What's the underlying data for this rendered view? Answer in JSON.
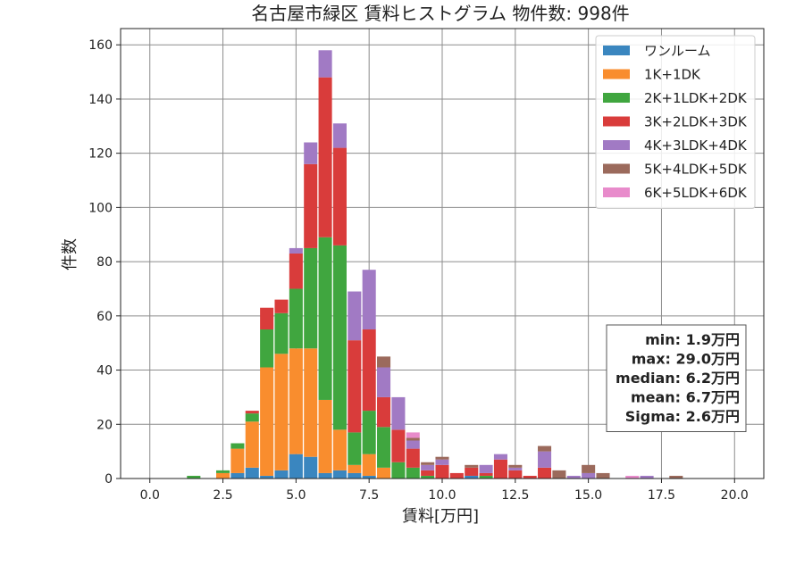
{
  "chart_data": {
    "type": "bar",
    "stacked": true,
    "title": "名古屋市緑区 賃料ヒストグラム  物件数: 998件",
    "xlabel": "賃料[万円]",
    "ylabel": "件数",
    "xlim": [
      -1.0,
      21.0
    ],
    "ylim": [
      0,
      166
    ],
    "xticks": [
      0.0,
      2.5,
      5.0,
      7.5,
      10.0,
      12.5,
      15.0,
      17.5,
      20.0
    ],
    "xtick_labels": [
      "0.0",
      "2.5",
      "5.0",
      "7.5",
      "10.0",
      "12.5",
      "15.0",
      "17.5",
      "20.0"
    ],
    "yticks": [
      0,
      20,
      40,
      60,
      80,
      100,
      120,
      140,
      160
    ],
    "ytick_labels": [
      "0",
      "20",
      "40",
      "60",
      "80",
      "100",
      "120",
      "140",
      "160"
    ],
    "grid": true,
    "legend_position": "top-right",
    "bin_width": 0.5,
    "x": [
      1.5,
      2.5,
      3.0,
      3.5,
      4.0,
      4.5,
      5.0,
      5.5,
      6.0,
      6.5,
      7.0,
      7.5,
      8.0,
      8.5,
      9.0,
      9.5,
      10.0,
      10.5,
      11.0,
      11.5,
      12.0,
      12.5,
      13.0,
      13.5,
      14.0,
      14.5,
      15.0,
      15.5,
      16.5,
      17.0,
      18.0
    ],
    "series": [
      {
        "name": "ワンルーム",
        "color": "#3a86bf",
        "values": [
          0,
          0,
          2,
          4,
          1,
          3,
          9,
          8,
          2,
          3,
          2,
          1,
          0,
          0,
          0,
          0,
          0,
          0,
          1,
          0,
          0,
          0,
          0,
          0,
          0,
          0,
          0,
          0,
          0,
          0,
          0
        ]
      },
      {
        "name": "1K+1DK",
        "color": "#f98d2e",
        "values": [
          0,
          2,
          9,
          17,
          40,
          43,
          39,
          40,
          27,
          15,
          3,
          8,
          4,
          0,
          0,
          0,
          0,
          0,
          0,
          0,
          0,
          0,
          0,
          0,
          0,
          0,
          0,
          0,
          0,
          0,
          0
        ]
      },
      {
        "name": "2K+1LDK+2DK",
        "color": "#40a63f",
        "values": [
          1,
          1,
          2,
          3,
          14,
          15,
          22,
          37,
          60,
          68,
          12,
          16,
          15,
          6,
          4,
          1,
          0,
          0,
          0,
          1,
          0,
          0,
          0,
          0,
          0,
          0,
          0,
          0,
          0,
          0,
          0
        ]
      },
      {
        "name": "3K+2LDK+3DK",
        "color": "#d93c3b",
        "values": [
          0,
          0,
          0,
          1,
          8,
          5,
          13,
          31,
          59,
          36,
          34,
          30,
          11,
          12,
          7,
          2,
          5,
          2,
          3,
          1,
          7,
          3,
          1,
          4,
          0,
          0,
          0,
          0,
          0,
          0,
          0
        ]
      },
      {
        "name": "4K+3LDK+4DK",
        "color": "#a17ac4",
        "values": [
          0,
          0,
          0,
          0,
          0,
          0,
          2,
          8,
          10,
          9,
          18,
          22,
          11,
          12,
          3,
          2,
          2,
          0,
          0,
          3,
          2,
          1,
          0,
          6,
          0,
          1,
          2,
          0,
          0,
          1,
          0
        ]
      },
      {
        "name": "5K+4LDK+5DK",
        "color": "#9b6a5c",
        "values": [
          0,
          0,
          0,
          0,
          0,
          0,
          0,
          0,
          0,
          0,
          0,
          0,
          4,
          0,
          1,
          1,
          1,
          0,
          1,
          0,
          0,
          1,
          0,
          2,
          3,
          0,
          3,
          2,
          0,
          0,
          1
        ]
      },
      {
        "name": "6K+5LDK+6DK",
        "color": "#e88bcb",
        "values": [
          0,
          0,
          0,
          0,
          0,
          0,
          0,
          0,
          0,
          0,
          0,
          0,
          0,
          0,
          2,
          0,
          0,
          0,
          0,
          0,
          0,
          0,
          0,
          0,
          0,
          0,
          0,
          0,
          1,
          0,
          0
        ]
      }
    ],
    "stats_box": [
      "min: 1.9万円",
      "max: 29.0万円",
      "median: 6.2万円",
      "mean: 6.7万円",
      "Sigma: 2.6万円"
    ]
  }
}
